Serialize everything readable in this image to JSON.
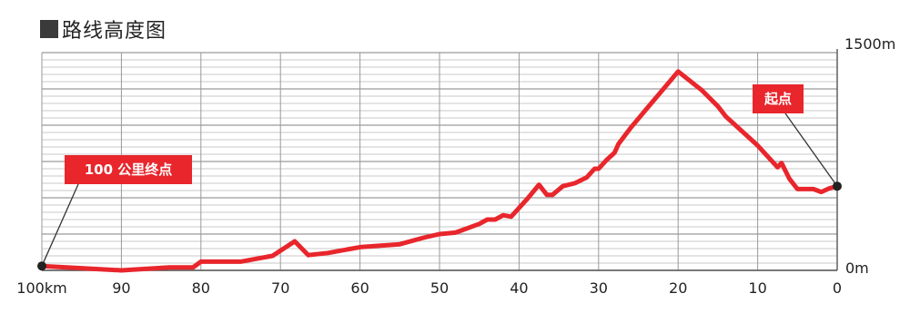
{
  "title": "路线高度图",
  "colors": {
    "line": "#e8262c",
    "callout": "#e8262c",
    "grid_major": "#9a9a9a",
    "grid_minor": "#c8c8c8",
    "marker": "#222222"
  },
  "chart_data": {
    "type": "line",
    "title": "路线高度图",
    "xlabel": "",
    "ylabel": "",
    "xlim": [
      100,
      0
    ],
    "ylim": [
      0,
      1500
    ],
    "x_direction": "reversed",
    "grid": true,
    "y_tick_labels": {
      "max": "1500m",
      "min": "0m"
    },
    "x_ticks": [
      {
        "value": 100,
        "label": "100km"
      },
      {
        "value": 90,
        "label": "90"
      },
      {
        "value": 80,
        "label": "80"
      },
      {
        "value": 70,
        "label": "70"
      },
      {
        "value": 60,
        "label": "60"
      },
      {
        "value": 50,
        "label": "50"
      },
      {
        "value": 40,
        "label": "40"
      },
      {
        "value": 30,
        "label": "30"
      },
      {
        "value": 20,
        "label": "20"
      },
      {
        "value": 10,
        "label": "10"
      },
      {
        "value": 0,
        "label": "0"
      }
    ],
    "series": [
      {
        "x": [
          100,
          95,
          90,
          87,
          84,
          81,
          80,
          75,
          73,
          71,
          68.2,
          66.5,
          64,
          60,
          55,
          52,
          50,
          48,
          45,
          44,
          43,
          42,
          41,
          39,
          37.5,
          36.5,
          35.8,
          34.5,
          33,
          31.5,
          30.5,
          30,
          29,
          28,
          27.5,
          26,
          24,
          22,
          20,
          17,
          15,
          14,
          12,
          10,
          8,
          7.5,
          7,
          6,
          5,
          3,
          2,
          1,
          0
        ],
        "y": [
          30,
          15,
          0,
          10,
          20,
          20,
          60,
          60,
          80,
          100,
          200,
          105,
          120,
          160,
          180,
          225,
          250,
          260,
          320,
          350,
          350,
          380,
          370,
          490,
          590,
          520,
          520,
          580,
          600,
          640,
          700,
          700,
          760,
          810,
          870,
          980,
          1110,
          1240,
          1370,
          1240,
          1130,
          1060,
          960,
          860,
          740,
          710,
          740,
          630,
          560,
          560,
          540,
          565,
          580
        ]
      }
    ],
    "markers": [
      {
        "x": 100,
        "y": 30
      },
      {
        "x": 0,
        "y": 580
      }
    ],
    "annotations": [
      {
        "text": "100 公里终点",
        "x": 100,
        "y": 30
      },
      {
        "text": "起点",
        "x": 0,
        "y": 580
      }
    ]
  }
}
